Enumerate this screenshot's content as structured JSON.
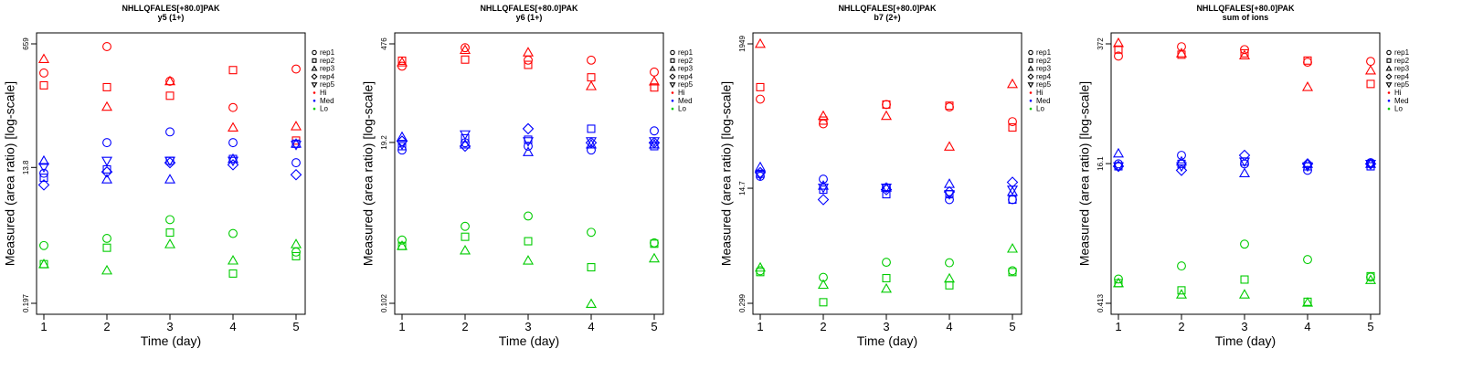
{
  "legend": {
    "reps": [
      "rep1",
      "rep2",
      "rep3",
      "rep4",
      "rep5"
    ],
    "levels": [
      "Hi",
      "Med",
      "Lo"
    ],
    "placement": "right-outside-top"
  },
  "colors": {
    "Hi": "#ff0000",
    "Med": "#0000ff",
    "Lo": "#00cc00"
  },
  "marker_shapes": {
    "rep1": "circle",
    "rep2": "square",
    "rep3": "triangle",
    "rep4": "diamond",
    "rep5": "triangle-down"
  },
  "chart_data": [
    {
      "type": "scatter",
      "title": "NHLLQFALES[+80.0]PAK",
      "subtitle": "y5 (1+)",
      "xlabel": "Time (day)",
      "ylabel": "Measured (area ratio) [log-scale]",
      "x_ticks": [
        "1",
        "2",
        "3",
        "4",
        "5"
      ],
      "y_scale": "log",
      "y_ticks": [
        "0.197",
        "13.8",
        "659"
      ],
      "ylim": [
        0.197,
        659
      ],
      "grid": false,
      "series": [
        {
          "rep": "rep1",
          "level": "Hi",
          "x": [
            1,
            2,
            3,
            4,
            5
          ],
          "y": [
            265,
            605,
            205,
            90,
            300
          ]
        },
        {
          "rep": "rep2",
          "level": "Hi",
          "x": [
            1,
            2,
            3,
            4,
            5
          ],
          "y": [
            180,
            170,
            130,
            290,
            32
          ]
        },
        {
          "rep": "rep3",
          "level": "Hi",
          "x": [
            1,
            2,
            3,
            4,
            5
          ],
          "y": [
            410,
            92,
            205,
            48,
            50
          ]
        },
        {
          "rep": "rep1",
          "level": "Med",
          "x": [
            1,
            2,
            3,
            4,
            5
          ],
          "y": [
            11.5,
            30,
            42,
            30,
            16
          ]
        },
        {
          "rep": "rep2",
          "level": "Med",
          "x": [
            1,
            2,
            3,
            4,
            5
          ],
          "y": [
            10,
            13,
            17,
            18,
            29
          ]
        },
        {
          "rep": "rep3",
          "level": "Med",
          "x": [
            1,
            2,
            3,
            4,
            5
          ],
          "y": [
            17,
            9.5,
            9.5,
            18,
            29
          ]
        },
        {
          "rep": "rep4",
          "level": "Med",
          "x": [
            1,
            2,
            3,
            4,
            5
          ],
          "y": [
            8,
            12,
            16,
            15,
            11
          ]
        },
        {
          "rep": "rep5",
          "level": "Med",
          "x": [
            1,
            2,
            3,
            4,
            5
          ],
          "y": [
            14,
            17,
            17,
            17,
            28
          ]
        },
        {
          "rep": "rep1",
          "level": "Lo",
          "x": [
            1,
            2,
            3,
            4,
            5
          ],
          "y": [
            1.2,
            1.5,
            2.7,
            1.75,
            0.98
          ]
        },
        {
          "rep": "rep2",
          "level": "Lo",
          "x": [
            1,
            2,
            3,
            4,
            5
          ],
          "y": [
            0.67,
            1.12,
            1.8,
            0.5,
            0.86
          ]
        },
        {
          "rep": "rep3",
          "level": "Lo",
          "x": [
            1,
            2,
            3,
            4,
            5
          ],
          "y": [
            0.67,
            0.55,
            1.25,
            0.75,
            1.25
          ]
        }
      ]
    },
    {
      "type": "scatter",
      "title": "NHLLQFALES[+80.0]PAK",
      "subtitle": "y6 (1+)",
      "xlabel": "Time (day)",
      "ylabel": "Measured (area ratio) [log-scale]",
      "x_ticks": [
        "1",
        "2",
        "3",
        "4",
        "5"
      ],
      "y_scale": "log",
      "y_ticks": [
        "0.102",
        "19.2",
        "476"
      ],
      "ylim": [
        0.102,
        476
      ],
      "grid": false,
      "series": [
        {
          "rep": "rep1",
          "level": "Hi",
          "x": [
            1,
            2,
            3,
            4,
            5
          ],
          "y": [
            230,
            420,
            280,
            280,
            190
          ]
        },
        {
          "rep": "rep2",
          "level": "Hi",
          "x": [
            1,
            2,
            3,
            4,
            5
          ],
          "y": [
            275,
            285,
            240,
            160,
            115
          ]
        },
        {
          "rep": "rep3",
          "level": "Hi",
          "x": [
            1,
            2,
            3,
            4,
            5
          ],
          "y": [
            260,
            390,
            360,
            120,
            140
          ]
        },
        {
          "rep": "rep1",
          "level": "Med",
          "x": [
            1,
            2,
            3,
            4,
            5
          ],
          "y": [
            15,
            19,
            17,
            15,
            28
          ]
        },
        {
          "rep": "rep2",
          "level": "Med",
          "x": [
            1,
            2,
            3,
            4,
            5
          ],
          "y": [
            17,
            22,
            21,
            30,
            17
          ]
        },
        {
          "rep": "rep3",
          "level": "Med",
          "x": [
            1,
            2,
            3,
            4,
            5
          ],
          "y": [
            23,
            18,
            14,
            18,
            18
          ]
        },
        {
          "rep": "rep4",
          "level": "Med",
          "x": [
            1,
            2,
            3,
            4,
            5
          ],
          "y": [
            20,
            17,
            30,
            19,
            19
          ]
        },
        {
          "rep": "rep5",
          "level": "Med",
          "x": [
            1,
            2,
            3,
            4,
            5
          ],
          "y": [
            18,
            25,
            20,
            20,
            20
          ]
        },
        {
          "rep": "rep1",
          "level": "Lo",
          "x": [
            1,
            2,
            3,
            4,
            5
          ],
          "y": [
            0.8,
            1.25,
            1.75,
            1.03,
            0.73
          ]
        },
        {
          "rep": "rep2",
          "level": "Lo",
          "x": [
            1,
            2,
            3,
            4,
            5
          ],
          "y": [
            0.66,
            0.89,
            0.77,
            0.33,
            0.71
          ]
        },
        {
          "rep": "rep3",
          "level": "Lo",
          "x": [
            1,
            2,
            3,
            4,
            5
          ],
          "y": [
            0.66,
            0.57,
            0.41,
            0.1,
            0.44
          ]
        }
      ]
    },
    {
      "type": "scatter",
      "title": "NHLLQFALES[+80.0]PAK",
      "subtitle": "b7 (2+)",
      "xlabel": "Time (day)",
      "ylabel": "Measured (area ratio) [log-scale]",
      "x_ticks": [
        "1",
        "2",
        "3",
        "4",
        "5"
      ],
      "y_scale": "log",
      "y_ticks": [
        "0.299",
        "14.7",
        "1949"
      ],
      "ylim": [
        0.299,
        1949
      ],
      "grid": false,
      "series": [
        {
          "rep": "rep1",
          "level": "Hi",
          "x": [
            1,
            2,
            3,
            4,
            5
          ],
          "y": [
            300,
            130,
            250,
            230,
            140
          ]
        },
        {
          "rep": "rep2",
          "level": "Hi",
          "x": [
            1,
            2,
            3,
            4,
            5
          ],
          "y": [
            450,
            145,
            250,
            240,
            115
          ]
        },
        {
          "rep": "rep3",
          "level": "Hi",
          "x": [
            1,
            2,
            3,
            4,
            5
          ],
          "y": [
            1950,
            170,
            170,
            60,
            500
          ]
        },
        {
          "rep": "rep1",
          "level": "Med",
          "x": [
            1,
            2,
            3,
            4,
            5
          ],
          "y": [
            22,
            20,
            15,
            10,
            10
          ]
        },
        {
          "rep": "rep2",
          "level": "Med",
          "x": [
            1,
            2,
            3,
            4,
            5
          ],
          "y": [
            24,
            14,
            12,
            12,
            10
          ]
        },
        {
          "rep": "rep3",
          "level": "Med",
          "x": [
            1,
            2,
            3,
            4,
            5
          ],
          "y": [
            30,
            16,
            15,
            17,
            13
          ]
        },
        {
          "rep": "rep4",
          "level": "Med",
          "x": [
            1,
            2,
            3,
            4,
            5
          ],
          "y": [
            25,
            10,
            14,
            13,
            18
          ]
        },
        {
          "rep": "rep5",
          "level": "Med",
          "x": [
            1,
            2,
            3,
            4,
            5
          ],
          "y": [
            23,
            15,
            15,
            12,
            14
          ]
        },
        {
          "rep": "rep1",
          "level": "Lo",
          "x": [
            1,
            2,
            3,
            4,
            5
          ],
          "y": [
            0.9,
            0.72,
            1.2,
            1.18,
            0.9
          ]
        },
        {
          "rep": "rep2",
          "level": "Lo",
          "x": [
            1,
            2,
            3,
            4,
            5
          ],
          "y": [
            0.86,
            0.31,
            0.7,
            0.55,
            0.86
          ]
        },
        {
          "rep": "rep3",
          "level": "Lo",
          "x": [
            1,
            2,
            3,
            4,
            5
          ],
          "y": [
            1.0,
            0.56,
            0.49,
            0.69,
            1.9
          ]
        }
      ]
    },
    {
      "type": "scatter",
      "title": "NHLLQFALES[+80.0]PAK",
      "subtitle": "sum of ions",
      "xlabel": "Time (day)",
      "ylabel": "Measured (area ratio) [log-scale]",
      "x_ticks": [
        "1",
        "2",
        "3",
        "4",
        "5"
      ],
      "y_scale": "log",
      "y_ticks": [
        "0.413",
        "16.1",
        "372"
      ],
      "ylim": [
        0.413,
        372
      ],
      "grid": false,
      "series": [
        {
          "rep": "rep1",
          "level": "Hi",
          "x": [
            1,
            2,
            3,
            4,
            5
          ],
          "y": [
            270,
            345,
            320,
            230,
            235
          ]
        },
        {
          "rep": "rep2",
          "level": "Hi",
          "x": [
            1,
            2,
            3,
            4,
            5
          ],
          "y": [
            320,
            280,
            290,
            240,
            130
          ]
        },
        {
          "rep": "rep3",
          "level": "Hi",
          "x": [
            1,
            2,
            3,
            4,
            5
          ],
          "y": [
            380,
            290,
            275,
            120,
            185
          ]
        },
        {
          "rep": "rep1",
          "level": "Med",
          "x": [
            1,
            2,
            3,
            4,
            5
          ],
          "y": [
            16,
            20,
            16,
            13.5,
            16.5
          ]
        },
        {
          "rep": "rep2",
          "level": "Med",
          "x": [
            1,
            2,
            3,
            4,
            5
          ],
          "y": [
            15,
            16,
            17,
            15,
            15
          ]
        },
        {
          "rep": "rep3",
          "level": "Med",
          "x": [
            1,
            2,
            3,
            4,
            5
          ],
          "y": [
            21,
            17,
            12.5,
            16,
            16
          ]
        },
        {
          "rep": "rep4",
          "level": "Med",
          "x": [
            1,
            2,
            3,
            4,
            5
          ],
          "y": [
            15,
            13.5,
            20,
            16,
            16
          ]
        },
        {
          "rep": "rep5",
          "level": "Med",
          "x": [
            1,
            2,
            3,
            4,
            5
          ],
          "y": [
            15,
            15,
            17,
            15,
            16
          ]
        },
        {
          "rep": "rep1",
          "level": "Lo",
          "x": [
            1,
            2,
            3,
            4,
            5
          ],
          "y": [
            0.78,
            1.1,
            1.95,
            1.3,
            0.82
          ]
        },
        {
          "rep": "rep2",
          "level": "Lo",
          "x": [
            1,
            2,
            3,
            4,
            5
          ],
          "y": [
            0.7,
            0.58,
            0.77,
            0.43,
            0.84
          ]
        },
        {
          "rep": "rep3",
          "level": "Lo",
          "x": [
            1,
            2,
            3,
            4,
            5
          ],
          "y": [
            0.7,
            0.52,
            0.52,
            0.42,
            0.76
          ]
        }
      ]
    }
  ]
}
